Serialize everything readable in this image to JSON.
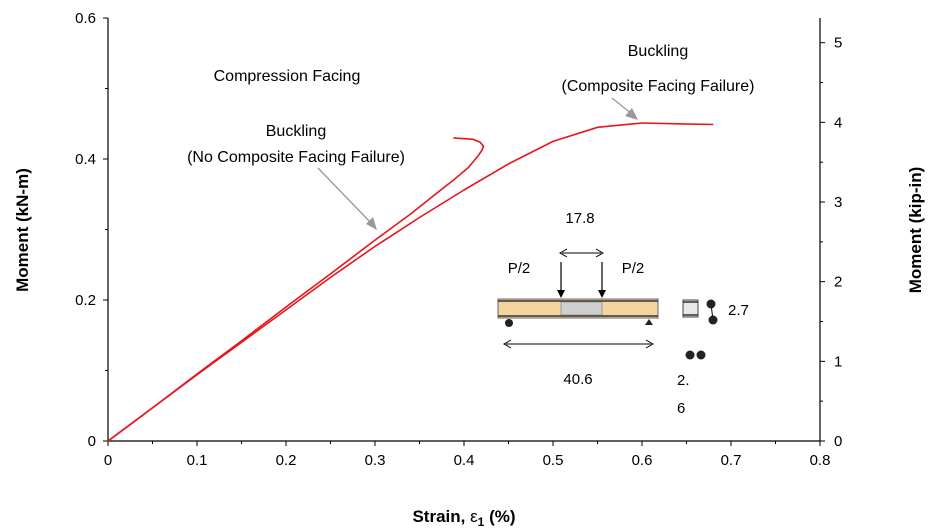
{
  "chart_data": {
    "type": "line",
    "xlabel_main": "Strain, ",
    "xlabel_symbol": "ε",
    "xlabel_sub": "1",
    "xlabel_tail": " (%)",
    "ylabel": "Moment (kN-m)",
    "ylabel_right": "Moment (kip-in)",
    "xlim": [
      0,
      0.8
    ],
    "ylim": [
      0,
      0.6
    ],
    "ylim_right": [
      0,
      5.31
    ],
    "x_ticks": [
      "0",
      "0.1",
      "0.2",
      "0.3",
      "0.4",
      "0.5",
      "0.6",
      "0.7",
      "0.8"
    ],
    "y_ticks": [
      "0",
      "0.2",
      "0.4",
      "0.6"
    ],
    "y_ticks_right": [
      "0",
      "1",
      "2",
      "3",
      "4",
      "5"
    ],
    "grid": false,
    "series": [
      {
        "color": "#e8141c",
        "x": [
          0,
          0.05,
          0.1,
          0.15,
          0.2,
          0.25,
          0.3,
          0.34,
          0.37,
          0.39,
          0.405,
          0.415,
          0.42,
          0.422,
          0.418,
          0.41,
          0.398,
          0.388
        ],
        "y": [
          0,
          0.047,
          0.095,
          0.142,
          0.19,
          0.237,
          0.285,
          0.322,
          0.352,
          0.372,
          0.388,
          0.403,
          0.412,
          0.418,
          0.424,
          0.428,
          0.429,
          0.43
        ]
      },
      {
        "color": "#e8141c",
        "x": [
          0,
          0.05,
          0.1,
          0.15,
          0.2,
          0.25,
          0.3,
          0.35,
          0.4,
          0.45,
          0.5,
          0.55,
          0.6,
          0.64,
          0.68
        ],
        "y": [
          0,
          0.047,
          0.094,
          0.14,
          0.186,
          0.232,
          0.276,
          0.317,
          0.356,
          0.393,
          0.425,
          0.445,
          0.451,
          0.45,
          0.449
        ]
      }
    ],
    "annotations": {
      "compression": "Compression Facing",
      "buckling1_line1": "Buckling",
      "buckling1_line2": "(No Composite Facing Failure)",
      "buckling2_line1": "Buckling",
      "buckling2_line2": "(Composite Facing Failure)"
    },
    "inset": {
      "load_left": "P/2",
      "load_right": "P/2",
      "inner_span": "17.8",
      "outer_span": "40.6",
      "height": "2.7",
      "width_line1": "2.",
      "width_line2": "6"
    }
  }
}
